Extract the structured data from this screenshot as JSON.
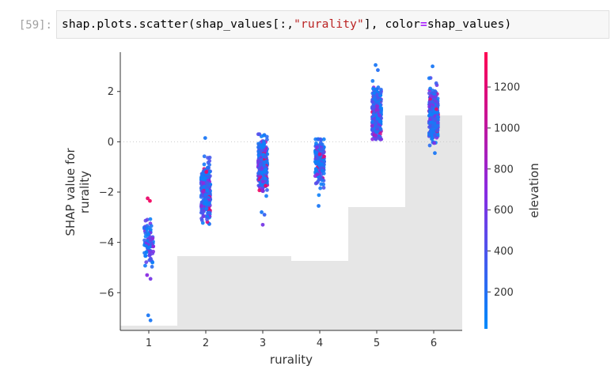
{
  "cell": {
    "prompt": "[59]:",
    "code_tokens": [
      {
        "t": "shap",
        "c": "plain"
      },
      {
        "t": ".",
        "c": "plain"
      },
      {
        "t": "plots",
        "c": "plain"
      },
      {
        "t": ".",
        "c": "plain"
      },
      {
        "t": "scatter(shap_values[:,",
        "c": "plain"
      },
      {
        "t": "\"rurality\"",
        "c": "str"
      },
      {
        "t": "], color",
        "c": "plain"
      },
      {
        "t": "=",
        "c": "op"
      },
      {
        "t": "shap_values)",
        "c": "plain"
      }
    ]
  },
  "colors": {
    "low": "#008afb",
    "mid": "#8a2be2",
    "high": "#ff0051",
    "histogram": "#e6e6e6",
    "axis": "#333333",
    "zero_line": "#cccccc"
  },
  "chart_data": {
    "type": "scatter",
    "title": "",
    "xlabel": "rurality",
    "ylabel_lines": [
      "SHAP value for",
      "rurality"
    ],
    "xlim": [
      0.5,
      6.5
    ],
    "ylim": [
      -7.5,
      3.5
    ],
    "xticks": [
      1,
      2,
      3,
      4,
      5,
      6
    ],
    "yticks": [
      -6,
      -4,
      -2,
      0,
      2
    ],
    "ytick_labels": [
      "−6",
      "−4",
      "−2",
      "0",
      "2"
    ],
    "zero_line": true,
    "histogram": [
      {
        "x": 1,
        "count": 3
      },
      {
        "x": 2,
        "count": 47
      },
      {
        "x": 3,
        "count": 47
      },
      {
        "x": 4,
        "count": 44
      },
      {
        "x": 5,
        "count": 78
      },
      {
        "x": 6,
        "count": 136
      }
    ],
    "histogram_max": 175,
    "colorbar": {
      "label": "elevation",
      "range": [
        20,
        1370
      ],
      "ticks": [
        200,
        400,
        600,
        800,
        1000,
        1200
      ]
    },
    "clusters": [
      {
        "x": 1,
        "n": 85,
        "mean": -4.0,
        "sd": 0.45,
        "ymin": -5.9,
        "ymax": -2.8,
        "outliers": [
          {
            "x": 0.98,
            "y": -2.25,
            "e": 1250
          },
          {
            "x": 1.02,
            "y": -2.35,
            "e": 1300
          },
          {
            "x": 0.97,
            "y": -5.3,
            "e": 700
          },
          {
            "x": 1.03,
            "y": -5.45,
            "e": 600
          },
          {
            "x": 0.99,
            "y": -6.9,
            "e": 150
          },
          {
            "x": 1.03,
            "y": -7.1,
            "e": 150
          }
        ]
      },
      {
        "x": 2,
        "n": 330,
        "mean": -2.0,
        "sd": 0.55,
        "ymin": -3.9,
        "ymax": -0.5,
        "outliers": [
          {
            "x": 1.99,
            "y": 0.15,
            "e": 150
          },
          {
            "x": 2.01,
            "y": -1.2,
            "e": 1250
          }
        ]
      },
      {
        "x": 3,
        "n": 320,
        "mean": -0.9,
        "sd": 0.5,
        "ymin": -2.5,
        "ymax": 0.3,
        "outliers": [
          {
            "x": 3.0,
            "y": -3.3,
            "e": 600
          },
          {
            "x": 2.98,
            "y": -2.8,
            "e": 150
          },
          {
            "x": 3.03,
            "y": -2.9,
            "e": 300
          },
          {
            "x": 3.05,
            "y": -1.75,
            "e": 1250
          }
        ]
      },
      {
        "x": 4,
        "n": 200,
        "mean": -0.75,
        "sd": 0.45,
        "ymin": -2.3,
        "ymax": 0.1,
        "outliers": [
          {
            "x": 3.98,
            "y": -2.55,
            "e": 150
          },
          {
            "x": 4.0,
            "y": -0.5,
            "e": 1100
          }
        ]
      },
      {
        "x": 5,
        "n": 330,
        "mean": 1.1,
        "sd": 0.5,
        "ymin": 0.1,
        "ymax": 2.6,
        "outliers": [
          {
            "x": 4.98,
            "y": 3.05,
            "e": 150
          },
          {
            "x": 5.02,
            "y": 2.85,
            "e": 200
          }
        ]
      },
      {
        "x": 6,
        "n": 330,
        "mean": 1.1,
        "sd": 0.5,
        "ymin": -0.4,
        "ymax": 2.7,
        "outliers": [
          {
            "x": 5.98,
            "y": 3.0,
            "e": 150
          },
          {
            "x": 6.02,
            "y": -0.45,
            "e": 150
          }
        ]
      }
    ]
  }
}
